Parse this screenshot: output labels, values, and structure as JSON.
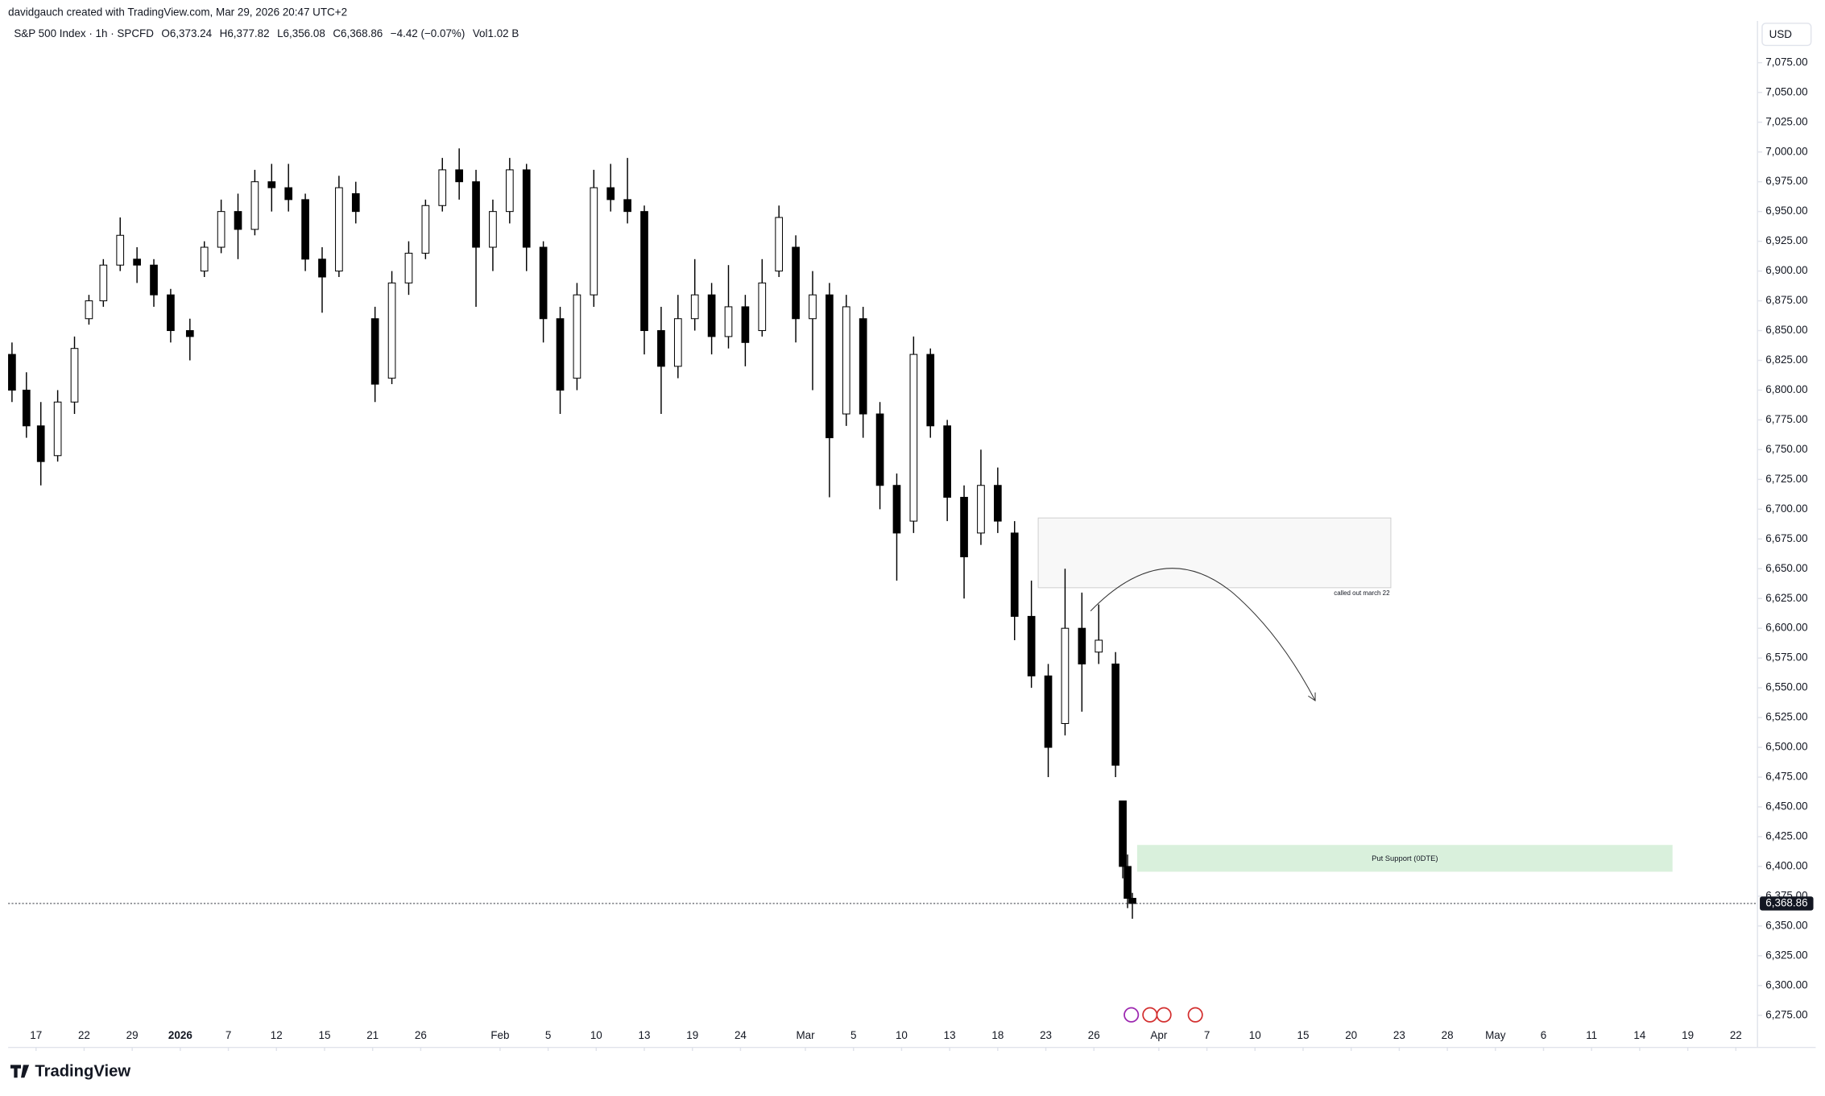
{
  "header": {
    "credit": "davidgauch created with TradingView.com, Mar 29, 2026 20:47 UTC+2"
  },
  "branding": "TradingView",
  "chart_data": {
    "type": "candlestick",
    "symbol": "S&P 500 Index · 1h · SPCFD",
    "legend_values": [
      "O6,373.24",
      "H6,377.82",
      "L6,356.08",
      "C6,368.86",
      "−4.42 (−0.07%)",
      "Vol1.02 B"
    ],
    "currency": "USD",
    "up_color": "#ffffff",
    "down_color": "#000000",
    "wick_color": "#000000",
    "x": [
      -0.5,
      -0.2,
      0.1,
      0.45,
      0.8,
      1.1,
      1.4,
      1.75,
      2.1,
      2.45,
      2.8,
      3.2,
      3.5,
      3.85,
      4.2,
      4.55,
      4.9,
      5.25,
      5.6,
      5.95,
      6.3,
      6.65,
      7.05,
      7.4,
      7.75,
      8.1,
      8.45,
      8.8,
      9.15,
      9.5,
      9.85,
      10.2,
      10.55,
      10.9,
      11.25,
      11.6,
      11.95,
      12.3,
      12.65,
      13.0,
      13.35,
      13.7,
      14.05,
      14.4,
      14.75,
      15.1,
      15.45,
      15.8,
      16.15,
      16.5,
      16.85,
      17.2,
      17.55,
      17.9,
      18.25,
      18.6,
      18.95,
      19.3,
      19.65,
      20.0,
      20.35,
      20.7,
      21.05,
      21.4,
      21.75,
      22.1,
      22.45,
      22.6,
      22.7,
      22.8
    ],
    "open": [
      6830,
      6800,
      6770,
      6745,
      6790,
      6860,
      6875,
      6905,
      6910,
      6905,
      6880,
      6850,
      6900,
      6920,
      6950,
      6935,
      6975,
      6970,
      6960,
      6910,
      6900,
      6965,
      6860,
      6810,
      6890,
      6915,
      6955,
      6985,
      6975,
      6920,
      6950,
      6985,
      6920,
      6860,
      6810,
      6880,
      6970,
      6960,
      6950,
      6850,
      6820,
      6860,
      6880,
      6845,
      6870,
      6850,
      6900,
      6920,
      6860,
      6880,
      6780,
      6860,
      6780,
      6720,
      6690,
      6830,
      6770,
      6710,
      6680,
      6720,
      6680,
      6610,
      6560,
      6520,
      6600,
      6580,
      6570,
      6455,
      6400,
      6373.24
    ],
    "high": [
      6840,
      6815,
      6790,
      6800,
      6845,
      6880,
      6910,
      6945,
      6920,
      6910,
      6885,
      6860,
      6925,
      6960,
      6965,
      6985,
      6990,
      6990,
      6965,
      6920,
      6980,
      6975,
      6870,
      6900,
      6925,
      6960,
      6995,
      7003,
      6985,
      6960,
      6995,
      6990,
      6925,
      6870,
      6890,
      6985,
      6990,
      6995,
      6955,
      6870,
      6880,
      6910,
      6890,
      6905,
      6880,
      6910,
      6955,
      6930,
      6900,
      6890,
      6880,
      6870,
      6790,
      6730,
      6845,
      6835,
      6775,
      6720,
      6750,
      6735,
      6690,
      6640,
      6570,
      6650,
      6630,
      6620,
      6580,
      6455,
      6410,
      6377.82
    ],
    "low": [
      6790,
      6760,
      6720,
      6740,
      6780,
      6855,
      6870,
      6900,
      6890,
      6870,
      6840,
      6825,
      6895,
      6915,
      6910,
      6930,
      6950,
      6950,
      6900,
      6865,
      6895,
      6940,
      6790,
      6805,
      6880,
      6910,
      6950,
      6960,
      6870,
      6900,
      6940,
      6900,
      6840,
      6780,
      6800,
      6870,
      6950,
      6940,
      6830,
      6780,
      6810,
      6850,
      6830,
      6835,
      6820,
      6845,
      6895,
      6840,
      6800,
      6710,
      6770,
      6760,
      6700,
      6640,
      6680,
      6760,
      6690,
      6625,
      6670,
      6680,
      6590,
      6550,
      6475,
      6510,
      6530,
      6570,
      6475,
      6390,
      6365,
      6356.08
    ],
    "close": [
      6800,
      6770,
      6740,
      6790,
      6835,
      6875,
      6905,
      6930,
      6905,
      6880,
      6850,
      6845,
      6920,
      6950,
      6935,
      6975,
      6970,
      6960,
      6910,
      6895,
      6970,
      6950,
      6805,
      6890,
      6915,
      6955,
      6985,
      6975,
      6920,
      6950,
      6985,
      6920,
      6860,
      6800,
      6880,
      6970,
      6960,
      6950,
      6850,
      6820,
      6860,
      6880,
      6845,
      6870,
      6840,
      6890,
      6945,
      6860,
      6880,
      6760,
      6870,
      6780,
      6720,
      6680,
      6830,
      6770,
      6710,
      6660,
      6720,
      6690,
      6610,
      6560,
      6500,
      6600,
      6570,
      6590,
      6485,
      6400,
      6373.24,
      6368.86
    ],
    "xlim": [
      -0.58,
      35.8
    ],
    "xticks": [
      {
        "value": 0,
        "label": "17"
      },
      {
        "value": 1,
        "label": "22"
      },
      {
        "value": 2,
        "label": "29"
      },
      {
        "value": 3,
        "label": "2026"
      },
      {
        "value": 4,
        "label": "7"
      },
      {
        "value": 5,
        "label": "12"
      },
      {
        "value": 6,
        "label": "15"
      },
      {
        "value": 7,
        "label": "21"
      },
      {
        "value": 8,
        "label": "26"
      },
      {
        "value": 9.65,
        "label": "Feb"
      },
      {
        "value": 10.65,
        "label": "5"
      },
      {
        "value": 11.65,
        "label": "10"
      },
      {
        "value": 12.65,
        "label": "13"
      },
      {
        "value": 13.65,
        "label": "19"
      },
      {
        "value": 14.65,
        "label": "24"
      },
      {
        "value": 16,
        "label": "Mar"
      },
      {
        "value": 17,
        "label": "5"
      },
      {
        "value": 18,
        "label": "10"
      },
      {
        "value": 19,
        "label": "13"
      },
      {
        "value": 20,
        "label": "18"
      },
      {
        "value": 21,
        "label": "23"
      },
      {
        "value": 22,
        "label": "26"
      },
      {
        "value": 23.35,
        "label": "Apr"
      },
      {
        "value": 24.35,
        "label": "7"
      },
      {
        "value": 25.35,
        "label": "10"
      },
      {
        "value": 26.35,
        "label": "15"
      },
      {
        "value": 27.35,
        "label": "20"
      },
      {
        "value": 28.35,
        "label": "23"
      },
      {
        "value": 29.35,
        "label": "28"
      },
      {
        "value": 30.35,
        "label": "May"
      },
      {
        "value": 31.35,
        "label": "6"
      },
      {
        "value": 32.35,
        "label": "11"
      },
      {
        "value": 33.35,
        "label": "14"
      },
      {
        "value": 34.35,
        "label": "19"
      },
      {
        "value": 35.35,
        "label": "22"
      }
    ],
    "ylim": [
      6248,
      7110
    ],
    "yticks": [
      {
        "value": 6275,
        "label": "6,275.00"
      },
      {
        "value": 6300,
        "label": "6,300.00"
      },
      {
        "value": 6325,
        "label": "6,325.00"
      },
      {
        "value": 6350,
        "label": "6,350.00"
      },
      {
        "value": 6375,
        "label": "6,375.00"
      },
      {
        "value": 6400,
        "label": "6,400.00"
      },
      {
        "value": 6425,
        "label": "6,425.00"
      },
      {
        "value": 6450,
        "label": "6,450.00"
      },
      {
        "value": 6475,
        "label": "6,475.00"
      },
      {
        "value": 6500,
        "label": "6,500.00"
      },
      {
        "value": 6525,
        "label": "6,525.00"
      },
      {
        "value": 6550,
        "label": "6,550.00"
      },
      {
        "value": 6575,
        "label": "6,575.00"
      },
      {
        "value": 6600,
        "label": "6,600.00"
      },
      {
        "value": 6625,
        "label": "6,625.00"
      },
      {
        "value": 6650,
        "label": "6,650.00"
      },
      {
        "value": 6675,
        "label": "6,675.00"
      },
      {
        "value": 6700,
        "label": "6,700.00"
      },
      {
        "value": 6725,
        "label": "6,725.00"
      },
      {
        "value": 6750,
        "label": "6,750.00"
      },
      {
        "value": 6775,
        "label": "6,775.00"
      },
      {
        "value": 6800,
        "label": "6,800.00"
      },
      {
        "value": 6825,
        "label": "6,825.00"
      },
      {
        "value": 6850,
        "label": "6,850.00"
      },
      {
        "value": 6875,
        "label": "6,875.00"
      },
      {
        "value": 6900,
        "label": "6,900.00"
      },
      {
        "value": 6925,
        "label": "6,925.00"
      },
      {
        "value": 6950,
        "label": "6,950.00"
      },
      {
        "value": 6975,
        "label": "6,975.00"
      },
      {
        "value": 7000,
        "label": "7,000.00"
      },
      {
        "value": 7025,
        "label": "7,025.00"
      },
      {
        "value": 7050,
        "label": "7,050.00"
      },
      {
        "value": 7075,
        "label": "7,075.00"
      }
    ],
    "last_price": {
      "value": 6368.86,
      "label": "6,368.86"
    },
    "annotations": [
      "called out march 22",
      "Put Support (0DTE)"
    ]
  }
}
